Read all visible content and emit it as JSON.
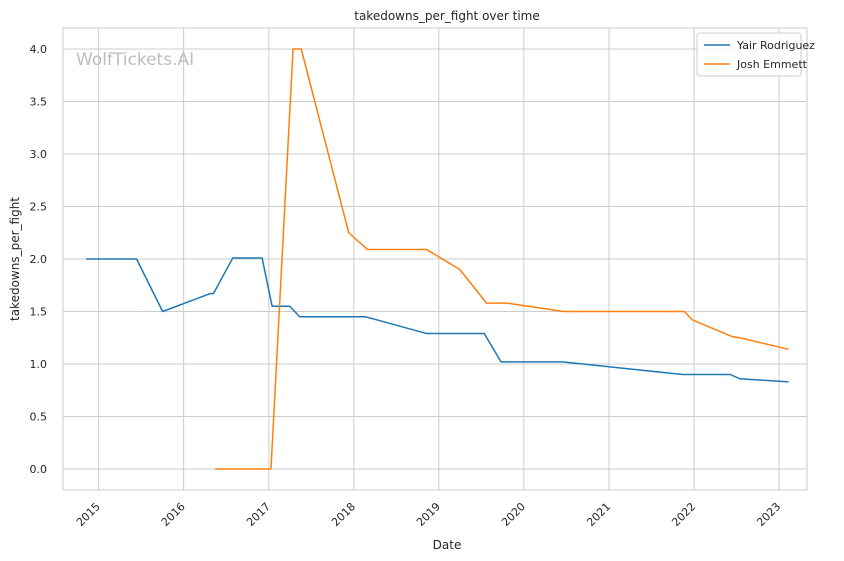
{
  "chart_data": {
    "type": "line",
    "title": "takedowns_per_fight over time",
    "xlabel": "Date",
    "ylabel": "takedowns_per_fight",
    "watermark": "WolfTickets.AI",
    "xlim": [
      "2014-08-01",
      "2023-05-01"
    ],
    "ylim": [
      -0.2,
      4.2
    ],
    "x_ticks": [
      "2015-01-01",
      "2016-01-01",
      "2017-01-01",
      "2018-01-01",
      "2019-01-01",
      "2020-01-01",
      "2021-01-01",
      "2022-01-01",
      "2023-01-01"
    ],
    "x_tick_labels": [
      "2015",
      "2016",
      "2017",
      "2018",
      "2019",
      "2020",
      "2021",
      "2022",
      "2023"
    ],
    "y_ticks": [
      0.0,
      0.5,
      1.0,
      1.5,
      2.0,
      2.5,
      3.0,
      3.5,
      4.0
    ],
    "y_tick_labels": [
      "0.0",
      "0.5",
      "1.0",
      "1.5",
      "2.0",
      "2.5",
      "3.0",
      "3.5",
      "4.0"
    ],
    "grid": true,
    "legend_position": "top-right",
    "series": [
      {
        "name": "Yair Rodriguez",
        "color": "#1f77b4",
        "points": [
          {
            "x": "2014-11-08",
            "y": 2.0
          },
          {
            "x": "2015-06-13",
            "y": 2.0
          },
          {
            "x": "2015-10-03",
            "y": 1.5
          },
          {
            "x": "2016-04-23",
            "y": 1.67
          },
          {
            "x": "2016-05-08",
            "y": 1.67
          },
          {
            "x": "2016-07-30",
            "y": 2.01
          },
          {
            "x": "2016-12-03",
            "y": 2.01
          },
          {
            "x": "2017-01-15",
            "y": 1.55
          },
          {
            "x": "2017-04-01",
            "y": 1.55
          },
          {
            "x": "2017-05-13",
            "y": 1.45
          },
          {
            "x": "2018-02-20",
            "y": 1.45
          },
          {
            "x": "2018-11-10",
            "y": 1.29
          },
          {
            "x": "2019-07-15",
            "y": 1.29
          },
          {
            "x": "2019-09-25",
            "y": 1.02
          },
          {
            "x": "2020-06-15",
            "y": 1.02
          },
          {
            "x": "2021-11-13",
            "y": 0.9
          },
          {
            "x": "2022-06-05",
            "y": 0.9
          },
          {
            "x": "2022-07-16",
            "y": 0.86
          },
          {
            "x": "2023-02-11",
            "y": 0.83
          }
        ]
      },
      {
        "name": "Josh Emmett",
        "color": "#ff7f0e",
        "points": [
          {
            "x": "2016-05-15",
            "y": 0.0
          },
          {
            "x": "2017-01-10",
            "y": 0.0
          },
          {
            "x": "2017-04-15",
            "y": 4.0
          },
          {
            "x": "2017-05-20",
            "y": 4.0
          },
          {
            "x": "2017-12-10",
            "y": 2.25
          },
          {
            "x": "2018-03-01",
            "y": 2.09
          },
          {
            "x": "2018-11-10",
            "y": 2.09
          },
          {
            "x": "2019-04-01",
            "y": 1.9
          },
          {
            "x": "2019-07-25",
            "y": 1.58
          },
          {
            "x": "2019-10-20",
            "y": 1.58
          },
          {
            "x": "2020-06-20",
            "y": 1.5
          },
          {
            "x": "2021-11-20",
            "y": 1.5
          },
          {
            "x": "2021-12-25",
            "y": 1.42
          },
          {
            "x": "2022-06-15",
            "y": 1.26
          },
          {
            "x": "2022-07-16",
            "y": 1.25
          },
          {
            "x": "2023-02-11",
            "y": 1.14
          }
        ]
      }
    ]
  }
}
